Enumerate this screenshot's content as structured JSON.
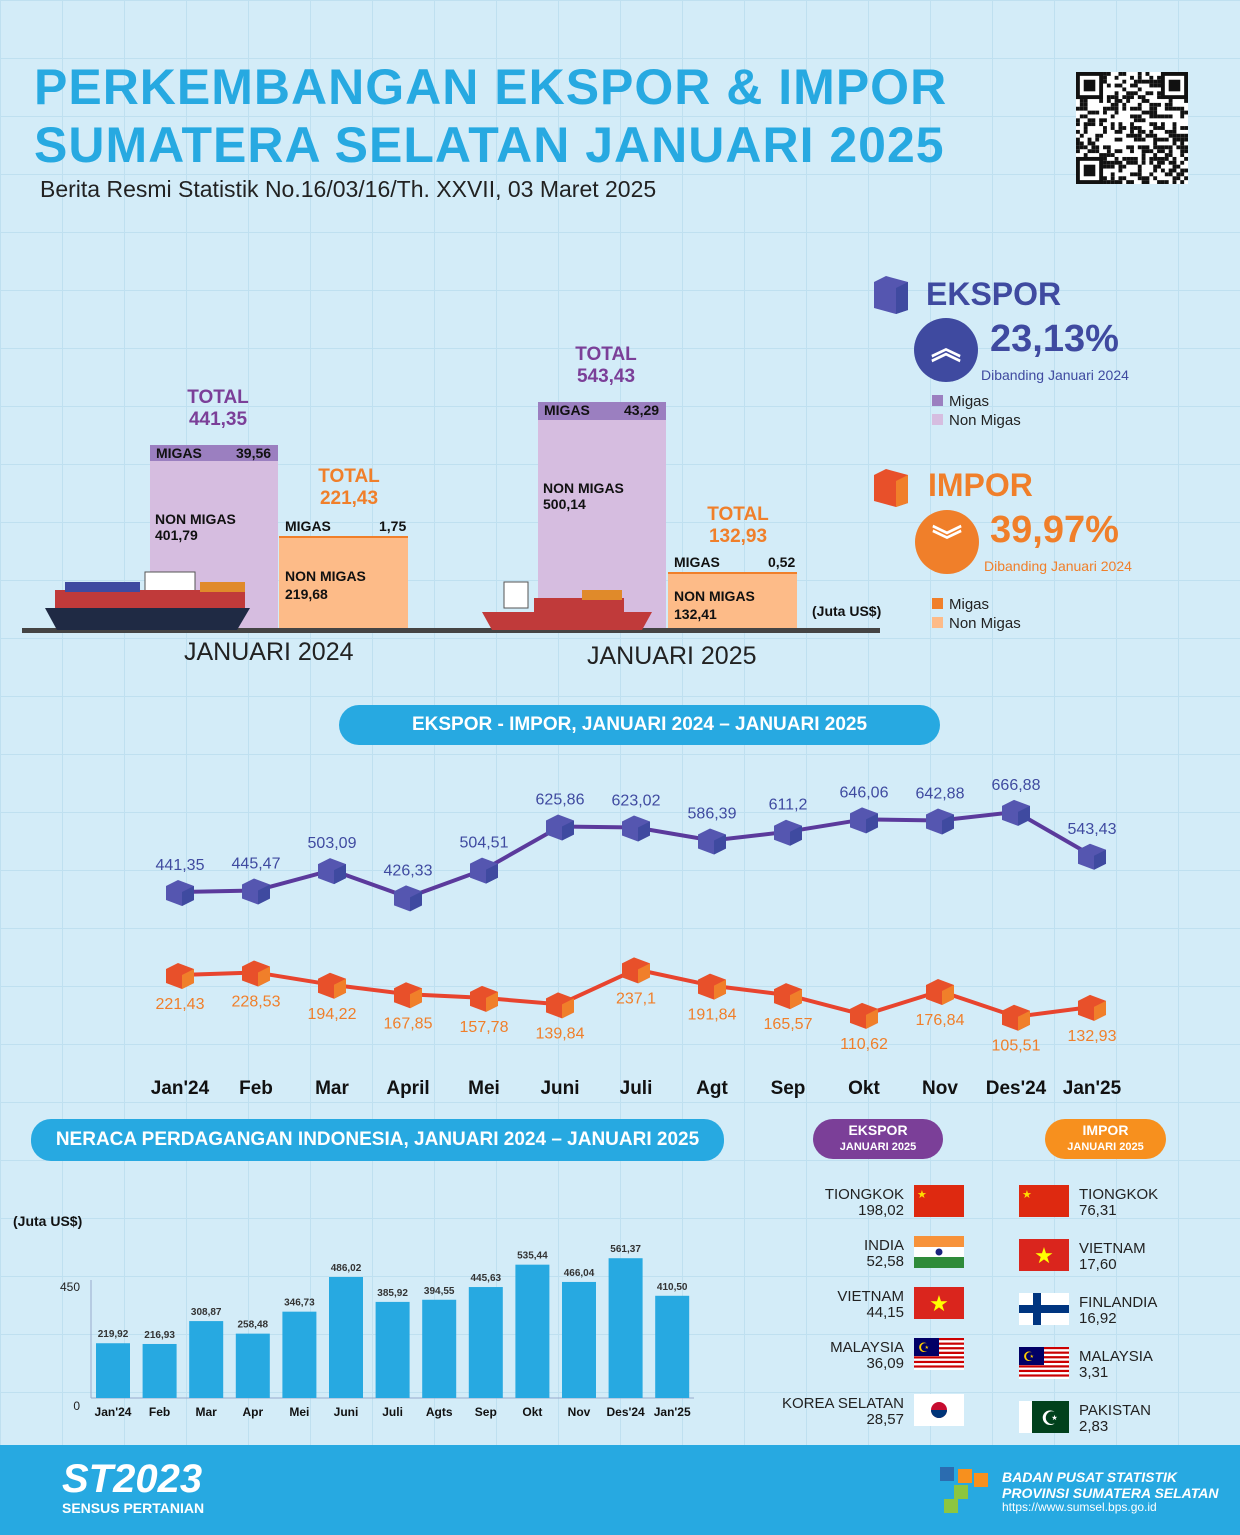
{
  "header": {
    "title_line1": "PERKEMBANGAN EKSPOR & IMPOR",
    "title_line2": "SUMATERA SELATAN JANUARI 2025",
    "subtitle": "Berita Resmi Statistik No.16/03/16/Th. XXVII, 03 Maret 2025"
  },
  "colors": {
    "accent": "#27a9e1",
    "ekspor": "#3f4aa0",
    "ekspor_migas": "#9b7fc0",
    "ekspor_nonmigas": "#d6bde0",
    "impor": "#f07f2a",
    "impor_migas": "#f07f2a",
    "impor_nonmigas": "#fdbb88",
    "import_line": "#e8442e"
  },
  "comparison": {
    "unit": "(Juta US$)",
    "periods": [
      {
        "label": "JANUARI 2024",
        "ekspor": {
          "total_label": "TOTAL",
          "total": "441,35",
          "total_v": 441.35,
          "migas_label": "MIGAS",
          "migas": "39,56",
          "migas_v": 39.56,
          "nonmigas_label": "NON MIGAS",
          "nonmigas": "401,79",
          "nonmigas_v": 401.79
        },
        "impor": {
          "total_label": "TOTAL",
          "total": "221,43",
          "migas_label": "MIGAS",
          "migas": "1,75",
          "nonmigas_label": "NON MIGAS",
          "nonmigas": "219,68",
          "nonmigas_v": 219.68
        }
      },
      {
        "label": "JANUARI 2025",
        "ekspor": {
          "total_label": "TOTAL",
          "total": "543,43",
          "total_v": 543.43,
          "migas_label": "MIGAS",
          "migas": "43,29",
          "migas_v": 43.29,
          "nonmigas_label": "NON MIGAS",
          "nonmigas": "500,14",
          "nonmigas_v": 500.14
        },
        "impor": {
          "total_label": "TOTAL",
          "total": "132,93",
          "migas_label": "MIGAS",
          "migas": "0,52",
          "nonmigas_label": "NON MIGAS",
          "nonmigas": "132,41",
          "nonmigas_v": 132.41
        }
      }
    ]
  },
  "summary": {
    "ekspor": {
      "title": "EKSPOR",
      "change": "23,13%",
      "direction": "up",
      "note": "Dibanding Januari 2024",
      "legend": [
        "Migas",
        "Non Migas"
      ]
    },
    "impor": {
      "title": "IMPOR",
      "change": "39,97%",
      "direction": "down",
      "note": "Dibanding Januari 2024",
      "legend": [
        "Migas",
        "Non Migas"
      ]
    }
  },
  "line_title": "EKSPOR - IMPOR, JANUARI 2024 – JANUARI 2025",
  "balance_title": "NERACA PERDAGANGAN INDONESIA, JANUARI 2024 – JANUARI 2025",
  "chart_data": [
    {
      "type": "line",
      "categories": [
        "Jan'24",
        "Feb",
        "Mar",
        "April",
        "Mei",
        "Juni",
        "Juli",
        "Agt",
        "Sep",
        "Okt",
        "Nov",
        "Des'24",
        "Jan'25"
      ],
      "series": [
        {
          "name": "Ekspor",
          "values": [
            441.35,
            445.47,
            503.09,
            426.33,
            504.51,
            625.86,
            623.02,
            586.39,
            611.2,
            646.06,
            642.88,
            666.88,
            543.43
          ],
          "labels": [
            "441,35",
            "445,47",
            "503,09",
            "426,33",
            "504,51",
            "625,86",
            "623,02",
            "586,39",
            "611,2",
            "646,06",
            "642,88",
            "666,88",
            "543,43"
          ]
        },
        {
          "name": "Impor",
          "values": [
            221.43,
            228.53,
            194.22,
            167.85,
            157.78,
            139.84,
            237.1,
            191.84,
            165.57,
            110.62,
            176.84,
            105.51,
            132.93
          ],
          "labels": [
            "221,43",
            "228,53",
            "194,22",
            "167,85",
            "157,78",
            "139,84",
            "237,1",
            "191,84",
            "165,57",
            "110,62",
            "176,84",
            "105,51",
            "132,93"
          ]
        }
      ]
    },
    {
      "type": "bar",
      "ylabel": "(Juta US$)",
      "yticks": [
        "0",
        "450"
      ],
      "ylim": [
        0,
        600
      ],
      "categories": [
        "Jan'24",
        "Feb",
        "Mar",
        "Apr",
        "Mei",
        "Juni",
        "Juli",
        "Agts",
        "Sep",
        "Okt",
        "Nov",
        "Des'24",
        "Jan'25"
      ],
      "values": [
        219.92,
        216.93,
        308.87,
        258.48,
        346.73,
        486.02,
        385.92,
        394.55,
        445.63,
        535.44,
        466.04,
        561.37,
        410.5
      ],
      "labels": [
        "219,92",
        "216,93",
        "308,87",
        "258,48",
        "346,73",
        "486,02",
        "385,92",
        "394,55",
        "445,63",
        "535,44",
        "466,04",
        "561,37",
        "410,50"
      ]
    }
  ],
  "partners": {
    "ekspor": {
      "title": "EKSPOR",
      "period": "JANUARI 2025",
      "items": [
        {
          "country": "TIONGKOK",
          "value": "198,02",
          "flag": "china"
        },
        {
          "country": "INDIA",
          "value": "52,58",
          "flag": "india"
        },
        {
          "country": "VIETNAM",
          "value": "44,15",
          "flag": "vietnam"
        },
        {
          "country": "MALAYSIA",
          "value": "36,09",
          "flag": "malaysia"
        },
        {
          "country": "KOREA SELATAN",
          "value": "28,57",
          "flag": "korea"
        }
      ]
    },
    "impor": {
      "title": "IMPOR",
      "period": "JANUARI 2025",
      "items": [
        {
          "country": "TIONGKOK",
          "value": "76,31",
          "flag": "china"
        },
        {
          "country": "VIETNAM",
          "value": "17,60",
          "flag": "vietnam"
        },
        {
          "country": "FINLANDIA",
          "value": "16,92",
          "flag": "finland"
        },
        {
          "country": "MALAYSIA",
          "value": "3,31",
          "flag": "malaysia"
        },
        {
          "country": "PAKISTAN",
          "value": "2,83",
          "flag": "pakistan"
        }
      ]
    }
  },
  "footer": {
    "st_logo": "ST2023",
    "st_sub": "SENSUS PERTANIAN",
    "org1": "BADAN PUSAT STATISTIK",
    "org2": "PROVINSI SUMATERA SELATAN",
    "url": "https://www.sumsel.bps.go.id"
  }
}
